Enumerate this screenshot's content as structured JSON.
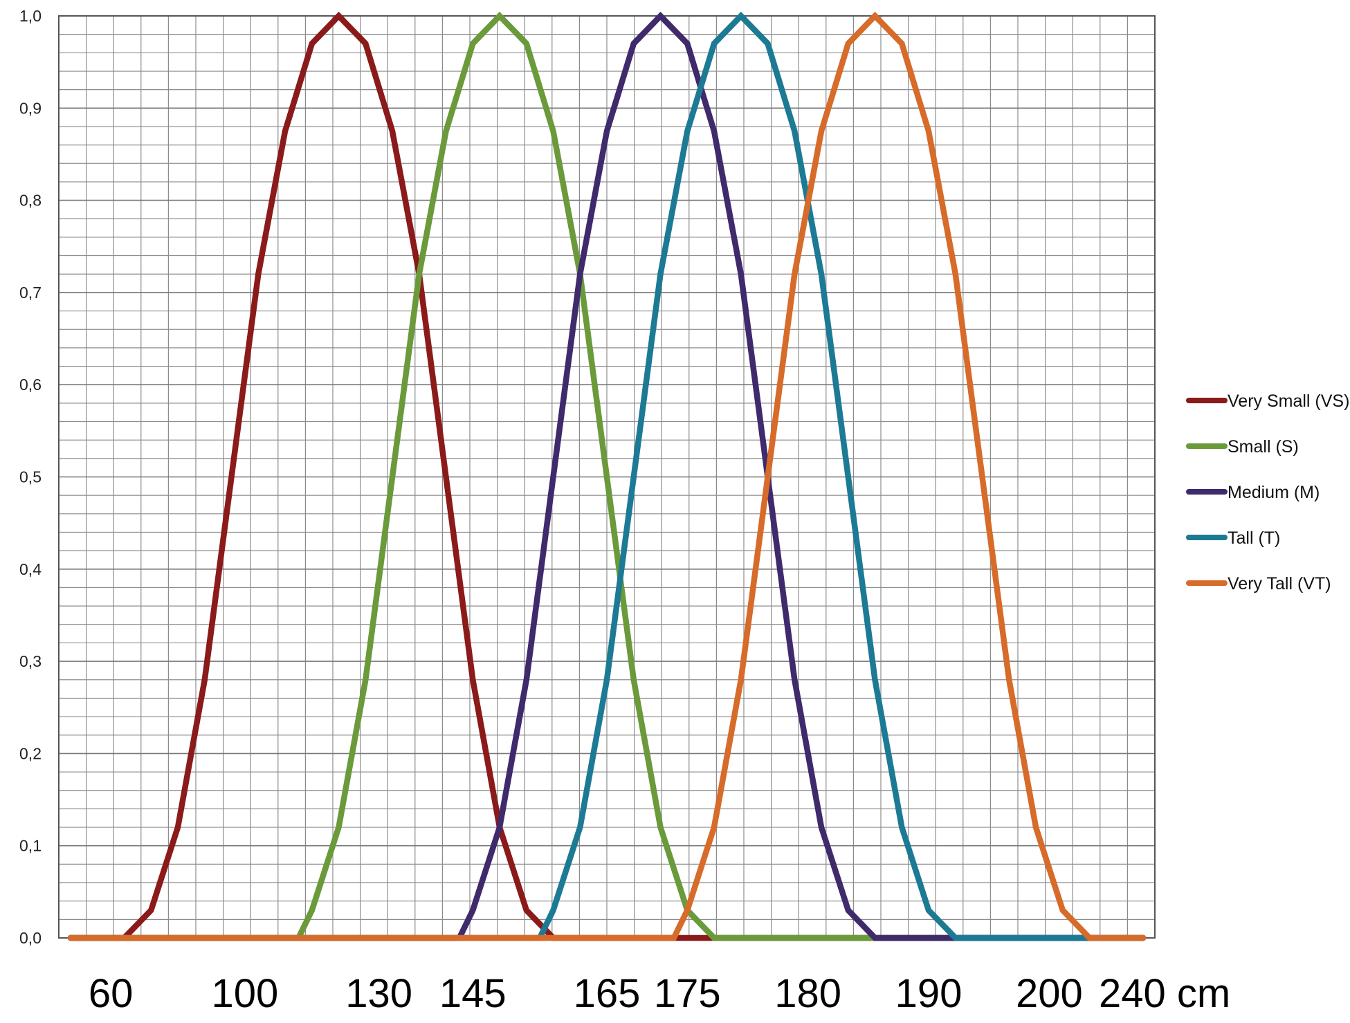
{
  "chart_data": {
    "type": "line",
    "title": "",
    "xlabel": "",
    "ylabel": "",
    "ylim": [
      0,
      1
    ],
    "grid": true,
    "legend_position": "right",
    "y_ticks": [
      "0,0",
      "0,1",
      "0,2",
      "0,3",
      "0,4",
      "0,5",
      "0,6",
      "0,7",
      "0,8",
      "0,9",
      "1,0"
    ],
    "x_tick_labels": [
      "60",
      "100",
      "130",
      "145",
      "165",
      "175",
      "180",
      "190",
      "200",
      "240 cm"
    ],
    "x_tick_index": [
      1.5,
      6.5,
      11.5,
      15,
      20,
      23,
      27.5,
      32,
      36.5,
      40.5
    ],
    "x_index_range": [
      0,
      40
    ],
    "series": [
      {
        "name": "Very Small (VS)",
        "color": "#8B1A1A",
        "center": 10,
        "support": [
          2,
          18
        ]
      },
      {
        "name": "Small (S)",
        "color": "#6A9A3A",
        "center": 16,
        "support": [
          8.5,
          24
        ]
      },
      {
        "name": "Medium (M)",
        "color": "#3F2A6B",
        "center": 22,
        "support": [
          14.5,
          30
        ]
      },
      {
        "name": "Tall (T)",
        "color": "#1D7A94",
        "center": 25,
        "support": [
          17.5,
          33
        ]
      },
      {
        "name": "Very Tall (VT)",
        "color": "#D76B2A",
        "center": 30,
        "support": [
          22.5,
          38
        ]
      }
    ],
    "profile": [
      [
        -8,
        0
      ],
      [
        -7,
        0.03
      ],
      [
        -6,
        0.12
      ],
      [
        -5,
        0.28
      ],
      [
        -4,
        0.5
      ],
      [
        -3,
        0.72
      ],
      [
        -2,
        0.875
      ],
      [
        -1,
        0.97
      ],
      [
        0,
        1.0
      ],
      [
        1,
        0.97
      ],
      [
        2,
        0.875
      ],
      [
        3,
        0.72
      ],
      [
        4,
        0.5
      ],
      [
        5,
        0.28
      ],
      [
        6,
        0.12
      ],
      [
        7,
        0.03
      ],
      [
        8,
        0
      ]
    ]
  }
}
